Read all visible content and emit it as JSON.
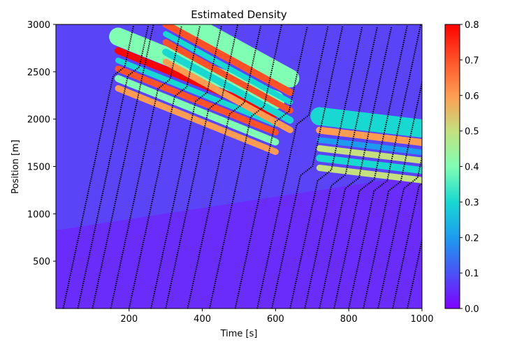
{
  "chart_data": {
    "type": "heatmap",
    "title": "Estimated Density",
    "xlabel": "Time [s]",
    "ylabel": "Position [m]",
    "xlim": [
      0,
      1000
    ],
    "ylim": [
      0,
      3000
    ],
    "x_ticks": [
      200,
      400,
      600,
      800,
      1000
    ],
    "x_tick_labels": [
      "200",
      "400",
      "600",
      "800",
      "1000"
    ],
    "y_ticks": [
      500,
      1000,
      1500,
      2000,
      2500,
      3000
    ],
    "y_tick_labels": [
      "500",
      "1000",
      "1500",
      "2000",
      "2500",
      "3000"
    ],
    "colormap": "rainbow",
    "colorbar": {
      "range": [
        0.0,
        0.8
      ],
      "ticks": [
        0.0,
        0.1,
        0.2,
        0.3,
        0.4,
        0.5,
        0.6,
        0.7,
        0.8
      ],
      "tick_labels": [
        "0.0",
        "0.1",
        "0.2",
        "0.3",
        "0.4",
        "0.5",
        "0.6",
        "0.7",
        "0.8"
      ],
      "placement": "right"
    },
    "background_density": 0.1,
    "congestion_waves": [
      {
        "t_start": 170,
        "x_start": 2620,
        "t_end": 600,
        "x_end": 1950,
        "density": 0.75
      },
      {
        "t_start": 300,
        "x_start": 2900,
        "t_end": 640,
        "x_end": 2180,
        "density": 0.7
      },
      {
        "t_start": 720,
        "x_start": 1780,
        "t_end": 1000,
        "x_end": 1650,
        "density": 0.55
      }
    ],
    "vehicle_trajectories": [
      {
        "t0": 20,
        "slowdown_x": 2470,
        "color": "#000000"
      },
      {
        "t0": 60,
        "slowdown_x": 2470
      },
      {
        "t0": 100,
        "slowdown_x": null
      },
      {
        "t0": 150,
        "slowdown_x": 2340
      },
      {
        "t0": 200,
        "slowdown_x": 2260
      },
      {
        "t0": 260,
        "slowdown_x": 2200
      },
      {
        "t0": 300,
        "slowdown_x": 2130
      },
      {
        "t0": 360,
        "slowdown_x": 2090
      },
      {
        "t0": 420,
        "slowdown_x": 2050
      },
      {
        "t0": 490,
        "slowdown_x": 2000
      },
      {
        "t0": 550,
        "slowdown_x": 1960
      },
      {
        "t0": 590,
        "slowdown_x": 1420
      },
      {
        "t0": 640,
        "slowdown_x": 1380
      },
      {
        "t0": 680,
        "slowdown_x": 1330
      },
      {
        "t0": 720,
        "slowdown_x": 1300
      },
      {
        "t0": 760,
        "slowdown_x": 1280
      },
      {
        "t0": 800,
        "slowdown_x": 1270
      },
      {
        "t0": 840,
        "slowdown_x": 1260
      },
      {
        "t0": 880,
        "slowdown_x": 1300
      },
      {
        "t0": 920,
        "slowdown_x": 1330
      },
      {
        "t0": 960,
        "slowdown_x": 1350
      }
    ]
  }
}
